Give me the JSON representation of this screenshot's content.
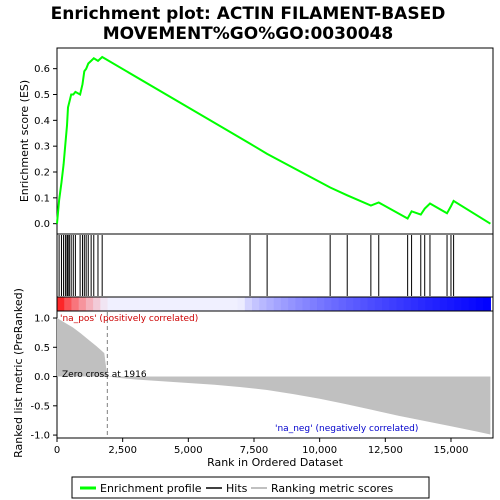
{
  "chart_data": {
    "type": "line",
    "title_line1": "Enrichment plot: ACTIN FILAMENT-BASED",
    "title_line2": "MOVEMENT%GO%GO:0030048",
    "ylabel_top": "Enrichment score (ES)",
    "ylabel_bottom": "Ranked list metric (PreRanked)",
    "xlabel": "Rank in Ordered Dataset",
    "x_range": [
      0,
      16600
    ],
    "es_ylim": [
      -0.04,
      0.68
    ],
    "metric_ylim": [
      -1.05,
      1.12
    ],
    "x_ticks": [
      0,
      2500,
      5000,
      7500,
      10000,
      12500,
      15000
    ],
    "x_tick_labels": [
      "0",
      "2,500",
      "5,000",
      "7,500",
      "10,000",
      "12,500",
      "15,000"
    ],
    "es_ticks": [
      0.0,
      0.1,
      0.2,
      0.3,
      0.4,
      0.5,
      0.6
    ],
    "es_tick_labels": [
      "0.0",
      "0.1",
      "0.2",
      "0.3",
      "0.4",
      "0.5",
      "0.6"
    ],
    "metric_ticks": [
      1.0,
      0.5,
      0.0,
      -0.5,
      -1.0
    ],
    "metric_tick_labels": [
      "1.0",
      "0.5",
      "0.0",
      "-0.5",
      "-1.0"
    ],
    "hits": [
      80,
      170,
      250,
      320,
      380,
      420,
      470,
      540,
      620,
      700,
      880,
      970,
      1040,
      1110,
      1190,
      1300,
      1400,
      1560,
      1720,
      7350,
      8000,
      10400,
      11050,
      11950,
      12250,
      13350,
      13500,
      13850,
      14000,
      14200,
      14850,
      15000,
      15100
    ],
    "es_profile": {
      "x": [
        0,
        80,
        170,
        250,
        320,
        380,
        420,
        470,
        540,
        620,
        700,
        880,
        970,
        1040,
        1110,
        1190,
        1300,
        1400,
        1560,
        1720,
        7350,
        8000,
        10400,
        11050,
        11950,
        12250,
        13350,
        13500,
        13850,
        14000,
        14200,
        14850,
        15000,
        15100,
        16500
      ],
      "y": [
        0.0,
        0.09,
        0.16,
        0.23,
        0.31,
        0.38,
        0.45,
        0.47,
        0.5,
        0.5,
        0.51,
        0.5,
        0.54,
        0.59,
        0.6,
        0.62,
        0.63,
        0.64,
        0.63,
        0.645,
        0.31,
        0.27,
        0.14,
        0.11,
        0.07,
        0.082,
        0.02,
        0.048,
        0.035,
        0.058,
        0.078,
        0.04,
        0.068,
        0.088,
        0.0
      ]
    },
    "ranked_metric": {
      "x": [
        0,
        300,
        600,
        900,
        1200,
        1500,
        1800,
        1916,
        2300,
        3000,
        4000,
        5000,
        6000,
        7000,
        8000,
        9000,
        10000,
        11000,
        12000,
        13000,
        14000,
        15000,
        16000,
        16500
      ],
      "y": [
        1.0,
        0.92,
        0.84,
        0.74,
        0.63,
        0.52,
        0.4,
        0.0,
        -0.02,
        -0.05,
        -0.08,
        -0.11,
        -0.14,
        -0.18,
        -0.23,
        -0.3,
        -0.38,
        -0.47,
        -0.57,
        -0.67,
        -0.76,
        -0.85,
        -0.94,
        -0.99
      ]
    },
    "zero_cross_rank": 1916,
    "annotations": {
      "pos": "'na_pos' (positively correlated)",
      "neg": "'na_neg' (negatively correlated)",
      "zero": "Zero cross at 1916"
    },
    "legend": {
      "enrichment_profile": "Enrichment profile",
      "hits": "Hits",
      "ranking_metric": "Ranking metric scores"
    },
    "colors": {
      "es_line": "#00ff00",
      "hits": "#000000",
      "metric_fill": "#c0c0c0",
      "pos_strong": "#ff0000",
      "neutral": "#f0f0ff",
      "neg_strong": "#0000ff",
      "zero_line": "#808080",
      "pos_text": "#cc0000",
      "neg_text": "#0000cc"
    }
  }
}
